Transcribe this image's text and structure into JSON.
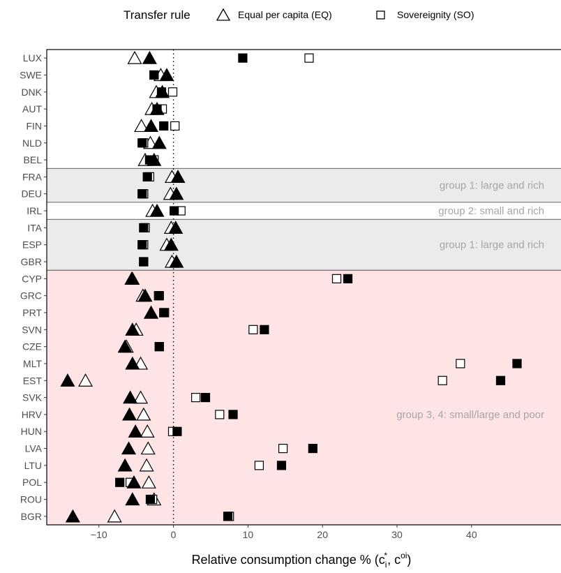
{
  "chart_data": {
    "type": "scatter",
    "xlabel": "Relative consumption change % (c",
    "xlabel_sub": "i",
    "xlabel_sup": "*",
    "xlabel_mid": ", c",
    "xlabel_sup2": "oi",
    "xlabel_end": ")",
    "xlim": [
      -17,
      52
    ],
    "xticks": [
      -10,
      0,
      10,
      20,
      30,
      40
    ],
    "reference_line": 0,
    "legend": {
      "title": "Transfer rule",
      "position": "top",
      "items": [
        {
          "shape": "triangle",
          "label": "Equal per capita (EQ)"
        },
        {
          "shape": "square",
          "label": "Sovereignity (SO)"
        }
      ]
    },
    "countries": [
      "LUX",
      "SWE",
      "DNK",
      "AUT",
      "FIN",
      "NLD",
      "BEL",
      "FRA",
      "DEU",
      "IRL",
      "ITA",
      "ESP",
      "GBR",
      "CYP",
      "GRC",
      "PRT",
      "SVN",
      "CZE",
      "MLT",
      "EST",
      "SVK",
      "HRV",
      "HUN",
      "LVA",
      "LTU",
      "POL",
      "ROU",
      "BGR"
    ],
    "bands": [
      {
        "from": "LUX",
        "to": "BEL",
        "label": "group 2: small and rich",
        "fill": "#ffffff"
      },
      {
        "from": "FRA",
        "to": "DEU",
        "label": "group 1: large and rich",
        "fill": "#ebebeb"
      },
      {
        "from": "IRL",
        "to": "IRL",
        "label": "group 2: small and rich",
        "fill": "#ffffff"
      },
      {
        "from": "ITA",
        "to": "GBR",
        "label": "group 1: large and rich",
        "fill": "#ebebeb"
      },
      {
        "from": "CYP",
        "to": "BGR",
        "label": "group 3, 4: small/large and poor",
        "fill": "#ffe4e6"
      }
    ],
    "series": [
      {
        "name": "EQ open",
        "shape": "triangle",
        "filled": false,
        "values": [
          -5.2,
          -1.7,
          -2.3,
          -2.9,
          -4.3,
          -3.1,
          -3.8,
          -0.2,
          -0.4,
          -2.8,
          -0.3,
          -0.9,
          -0.2,
          -5.6,
          -4.1,
          -3.0,
          -5.0,
          -6.3,
          -4.4,
          -11.8,
          -4.4,
          -4.0,
          -3.5,
          -3.4,
          -3.6,
          -3.3,
          -2.6,
          -7.9
        ]
      },
      {
        "name": "SO open",
        "shape": "square",
        "filled": false,
        "values": [
          18.2,
          -2.6,
          -0.1,
          -1.5,
          0.2,
          -4.0,
          -2.6,
          -3.2,
          -4.0,
          1.0,
          -3.8,
          -4.0,
          -4.0,
          21.9,
          -2.0,
          -1.2,
          10.7,
          -1.9,
          38.5,
          36.1,
          3.0,
          6.2,
          -0.1,
          14.7,
          11.5,
          -5.8,
          -2.8,
          7.5
        ]
      },
      {
        "name": "EQ filled",
        "shape": "triangle",
        "filled": true,
        "values": [
          -3.2,
          -0.9,
          -1.5,
          -2.2,
          -3.0,
          -1.9,
          -2.6,
          0.6,
          0.4,
          -2.2,
          0.3,
          -0.3,
          0.4,
          -5.5,
          -3.8,
          -3.0,
          -5.5,
          -6.5,
          -5.5,
          -14.2,
          -5.8,
          -5.9,
          -5.1,
          -6.0,
          -6.5,
          -5.3,
          -5.5,
          -13.5
        ]
      },
      {
        "name": "SO filled",
        "shape": "square",
        "filled": true,
        "values": [
          9.3,
          -2.6,
          -1.6,
          -2.2,
          -1.3,
          -4.2,
          -3.2,
          -3.5,
          -4.2,
          0.1,
          -4.0,
          -4.2,
          -4.0,
          23.4,
          -1.9,
          -1.3,
          12.2,
          -1.9,
          46.1,
          43.9,
          4.3,
          8.0,
          0.5,
          18.7,
          14.5,
          -7.2,
          -3.1,
          7.3
        ]
      }
    ]
  }
}
